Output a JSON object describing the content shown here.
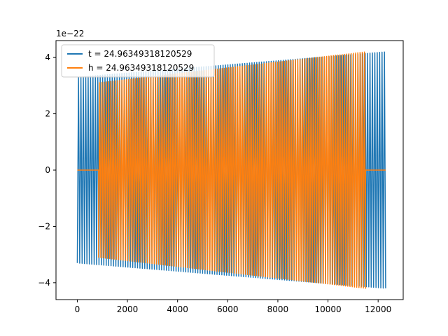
{
  "chart_data": {
    "type": "line",
    "title": "",
    "xlabel": "",
    "ylabel": "",
    "y_scale_label": "1e−22",
    "xlim": [
      -850,
      13000
    ],
    "ylim": [
      -4.6,
      4.6
    ],
    "x_ticks": [
      0,
      2000,
      4000,
      6000,
      8000,
      10000,
      12000
    ],
    "x_tick_labels": [
      "0",
      "2000",
      "4000",
      "6000",
      "8000",
      "10000",
      "12000"
    ],
    "y_ticks": [
      -4,
      -2,
      0,
      2,
      4
    ],
    "y_tick_labels": [
      "−4",
      "−2",
      "0",
      "2",
      "4"
    ],
    "grid": false,
    "legend_position": "upper-left",
    "series": [
      {
        "name": "t = 24.96349318120529",
        "color": "#1f77b4",
        "signal": {
          "x_start": 0,
          "x_end": 12300,
          "cycles": 128,
          "amp_start": 3.3,
          "amp_end": 4.2,
          "leading_flat_end": 0,
          "trailing_flat_start": 12300
        }
      },
      {
        "name": "h = 24.96349318120529",
        "color": "#ff7f0e",
        "signal": {
          "x_start": 0,
          "x_end": 12300,
          "cycles": 120,
          "amp_start": 3.1,
          "amp_end": 4.2,
          "leading_flat_start": 0,
          "leading_flat_end": 850,
          "wave_end": 11500,
          "trailing_flat_start": 11500
        }
      }
    ]
  }
}
